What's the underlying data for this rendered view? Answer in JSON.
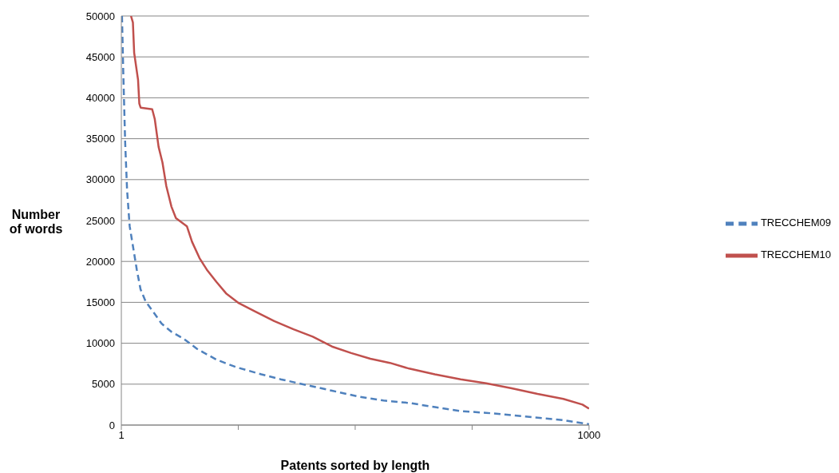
{
  "chart_data": {
    "type": "line",
    "xlabel": "Patents sorted by length",
    "ylabel": "Number of words",
    "xlim": [
      1,
      1000
    ],
    "xticks": [
      1,
      {
        "value": 250.75,
        "label": null
      },
      {
        "value": 500.5,
        "label": null
      },
      {
        "value": 750.25,
        "label": null
      },
      1000
    ],
    "ylim": [
      0,
      50000
    ],
    "yticks": [
      0,
      5000,
      10000,
      15000,
      20000,
      25000,
      30000,
      35000,
      40000,
      45000,
      50000
    ],
    "grid": "y",
    "legend": "right",
    "marker": "none",
    "series": [
      {
        "name": "TRECCHEM09",
        "color": "#4f81bd",
        "line_style": "dashed",
        "x": [
          2.4,
          5.1,
          9.2,
          13.3,
          18.8,
          25.7,
          34,
          42,
          53,
          67,
          87,
          108,
          135.5,
          163,
          204,
          245,
          300,
          341,
          396,
          451,
          506,
          561,
          616,
          671,
          726,
          780,
          835,
          890,
          945,
          1000
        ],
        "values": [
          50000,
          43200,
          34500,
          28700,
          24300,
          21900,
          19000,
          16600,
          15100,
          14000,
          12400,
          11400,
          10500,
          9300,
          8000,
          7100,
          6200,
          5600,
          4900,
          4200,
          3500,
          3000,
          2700,
          2200,
          1700,
          1500,
          1200,
          900,
          600,
          100
        ]
      },
      {
        "name": "TRECCHEM10",
        "color": "#c0504d",
        "line_style": "solid",
        "x": [
          21.6,
          25.7,
          28.4,
          36.7,
          39.4,
          42.2,
          66.9,
          72.4,
          80.6,
          88.8,
          97.1,
          108,
          117.6,
          141,
          152,
          168,
          183.5,
          204,
          224.7,
          252,
          286,
          327.6,
          368.8,
          409.9,
          451,
          492,
          533,
          574.6,
          615.8,
          670.7,
          725.6,
          780.5,
          835,
          890,
          945,
          986,
          1000
        ],
        "values": [
          50000,
          49200,
          45500,
          42200,
          39300,
          38800,
          38600,
          37400,
          34000,
          32100,
          29200,
          26700,
          25300,
          24300,
          22400,
          20400,
          19000,
          17500,
          16100,
          14900,
          13900,
          12700,
          11700,
          10800,
          9600,
          8800,
          8100,
          7600,
          6900,
          6200,
          5600,
          5100,
          4500,
          3800,
          3200,
          2500,
          2000
        ]
      }
    ]
  }
}
